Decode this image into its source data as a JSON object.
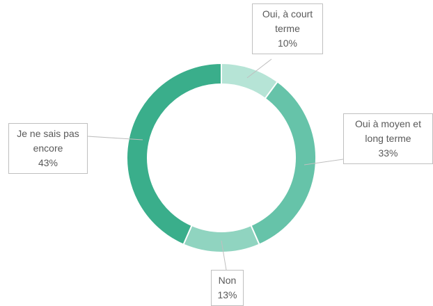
{
  "chart_data": {
    "type": "donut",
    "categories": [
      "Oui, à court terme",
      "Oui à moyen et long terme",
      "Non",
      "Je ne sais pas encore"
    ],
    "values": [
      10,
      33,
      13,
      43
    ],
    "value_labels": [
      "10%",
      "33%",
      "13%",
      "43%"
    ],
    "colors": [
      "#b6e4d6",
      "#66c3a9",
      "#90d4c0",
      "#3aae8b"
    ]
  }
}
